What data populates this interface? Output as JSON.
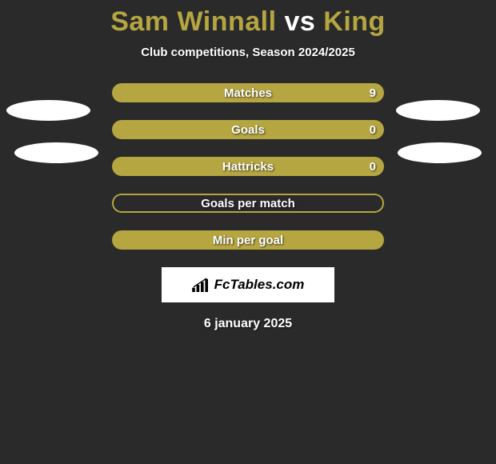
{
  "title": {
    "player1": "Sam Winnall",
    "vs": "vs",
    "player2": "King",
    "player1_color": "#b5a642",
    "vs_color": "#ffffff",
    "player2_color": "#b5a642"
  },
  "subtitle": "Club competitions, Season 2024/2025",
  "stats": [
    {
      "label": "Matches",
      "value": "9",
      "filled": true,
      "has_value": true
    },
    {
      "label": "Goals",
      "value": "0",
      "filled": true,
      "has_value": true
    },
    {
      "label": "Hattricks",
      "value": "0",
      "filled": true,
      "has_value": true
    },
    {
      "label": "Goals per match",
      "value": "",
      "filled": false,
      "has_value": false
    },
    {
      "label": "Min per goal",
      "value": "",
      "filled": true,
      "has_value": false
    }
  ],
  "logo": {
    "text": "FcTables.com"
  },
  "date": "6 january 2025",
  "colors": {
    "bar_fill": "#b5a642",
    "bar_border": "#b5a642",
    "background": "#2a2a2a",
    "ellipse": "#ffffff"
  }
}
